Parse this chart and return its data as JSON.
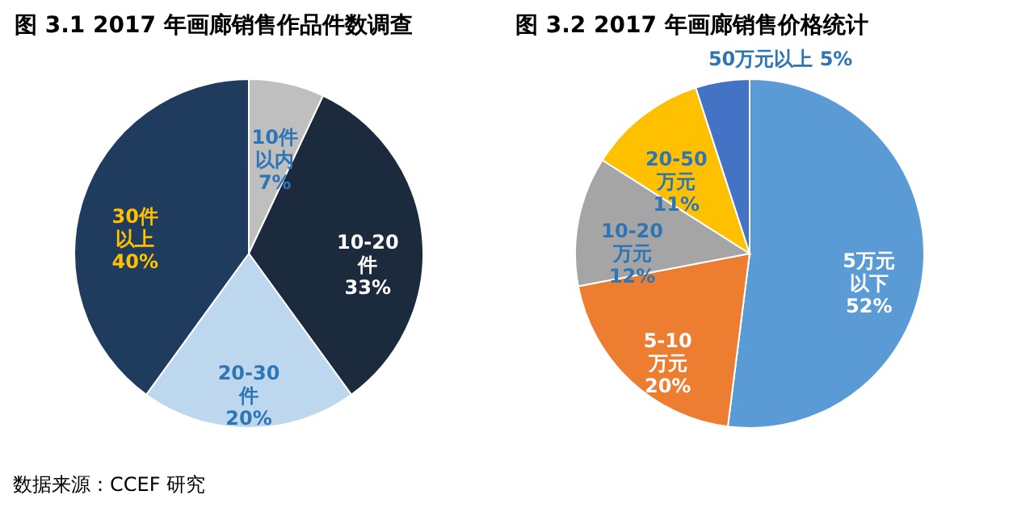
{
  "chart_data": [
    {
      "type": "pie",
      "title": "图 3.1 2017 年画廊销售作品件数调查",
      "categories": [
        "10件以内",
        "10-20件",
        "20-30件",
        "30件以上"
      ],
      "values": [
        7,
        33,
        20,
        40
      ],
      "colors": [
        "#bfbfbf",
        "#1c2a3e",
        "#bdd7ee",
        "#1f3b5e"
      ],
      "value_labels": [
        "7%",
        "33%",
        "20%",
        "40%"
      ],
      "annotations": [
        "数据来源：CCEF 研究"
      ]
    },
    {
      "type": "pie",
      "title": "图 3.2 2017 年画廊销售价格统计",
      "categories": [
        "5万元以下",
        "5-10万元",
        "10-20万元",
        "20-50万元",
        "50万元以上"
      ],
      "values": [
        52,
        20,
        12,
        11,
        5
      ],
      "colors": [
        "#5b9bd5",
        "#ed7d31",
        "#a5a5a5",
        "#ffc000",
        "#4472c4"
      ],
      "value_labels": [
        "52%",
        "20%",
        "12%",
        "11%",
        "5%"
      ]
    }
  ]
}
